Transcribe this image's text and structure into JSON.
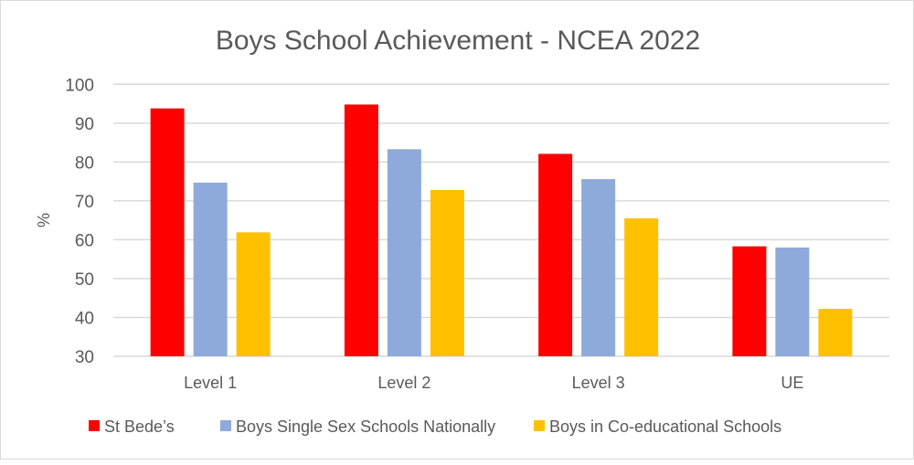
{
  "chart_data": {
    "type": "bar",
    "title": "Boys School Achievement - NCEA 2022",
    "xlabel": "",
    "ylabel": "%",
    "ylim": [
      30,
      100
    ],
    "yticks": [
      30,
      40,
      50,
      60,
      70,
      80,
      90,
      100
    ],
    "grid": true,
    "legend_position": "bottom",
    "categories": [
      "Level 1",
      "Level 2",
      "Level 3",
      "UE"
    ],
    "series": [
      {
        "name": "St Bede’s",
        "color": "#ff0000",
        "values": [
          93.8,
          94.8,
          82.1,
          58.3
        ]
      },
      {
        "name": "Boys Single Sex Schools Nationally",
        "color": "#8eaadb",
        "values": [
          74.7,
          83.3,
          75.6,
          58.0
        ]
      },
      {
        "name": "Boys in Co-educational Schools",
        "color": "#ffc000",
        "values": [
          61.9,
          72.8,
          65.5,
          42.2
        ]
      }
    ]
  }
}
